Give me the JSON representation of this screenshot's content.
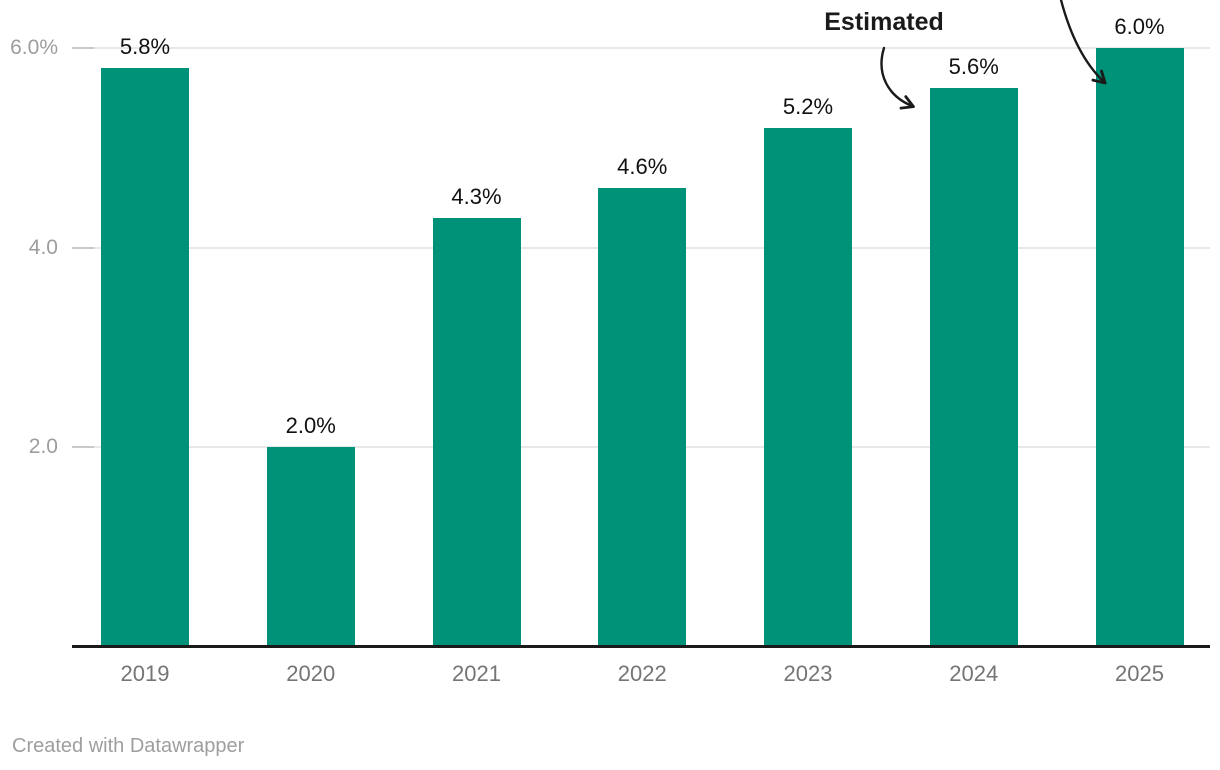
{
  "annotation": {
    "estimated_label": "Estimated"
  },
  "footer": {
    "credit": "Created with Datawrapper"
  },
  "colors": {
    "bar": "#009278",
    "value_label": "#111111",
    "x_axis_label": "#757575",
    "y_axis_label": "#9d9d9d",
    "gridline": "#e8e8e8",
    "tick": "#c9c9c9",
    "baseline": "#1a1a1a",
    "arrow": "#1a1a1a",
    "annotation_text": "#1a1a1a",
    "footer_text": "#9e9e9e"
  },
  "chart_data": {
    "type": "bar",
    "categories": [
      "2019",
      "2020",
      "2021",
      "2022",
      "2023",
      "2024",
      "2025"
    ],
    "values": [
      5.8,
      2.0,
      4.3,
      4.6,
      5.2,
      5.6,
      6.0
    ],
    "data_labels": [
      "5.8%",
      "2.0%",
      "4.3%",
      "4.6%",
      "5.2%",
      "5.6%",
      "6.0%"
    ],
    "title": "",
    "xlabel": "",
    "ylabel": "",
    "ylim": [
      0,
      6.0
    ],
    "yticks": [
      {
        "value": 2.0,
        "label": "2.0"
      },
      {
        "value": 4.0,
        "label": "4.0"
      },
      {
        "value": 6.0,
        "label": "6.0%"
      }
    ],
    "grid": true,
    "legend": "none",
    "bar_color": "#009278",
    "annotations": [
      {
        "text": "Estimated",
        "applies_to": [
          "2024",
          "2025"
        ]
      }
    ]
  }
}
